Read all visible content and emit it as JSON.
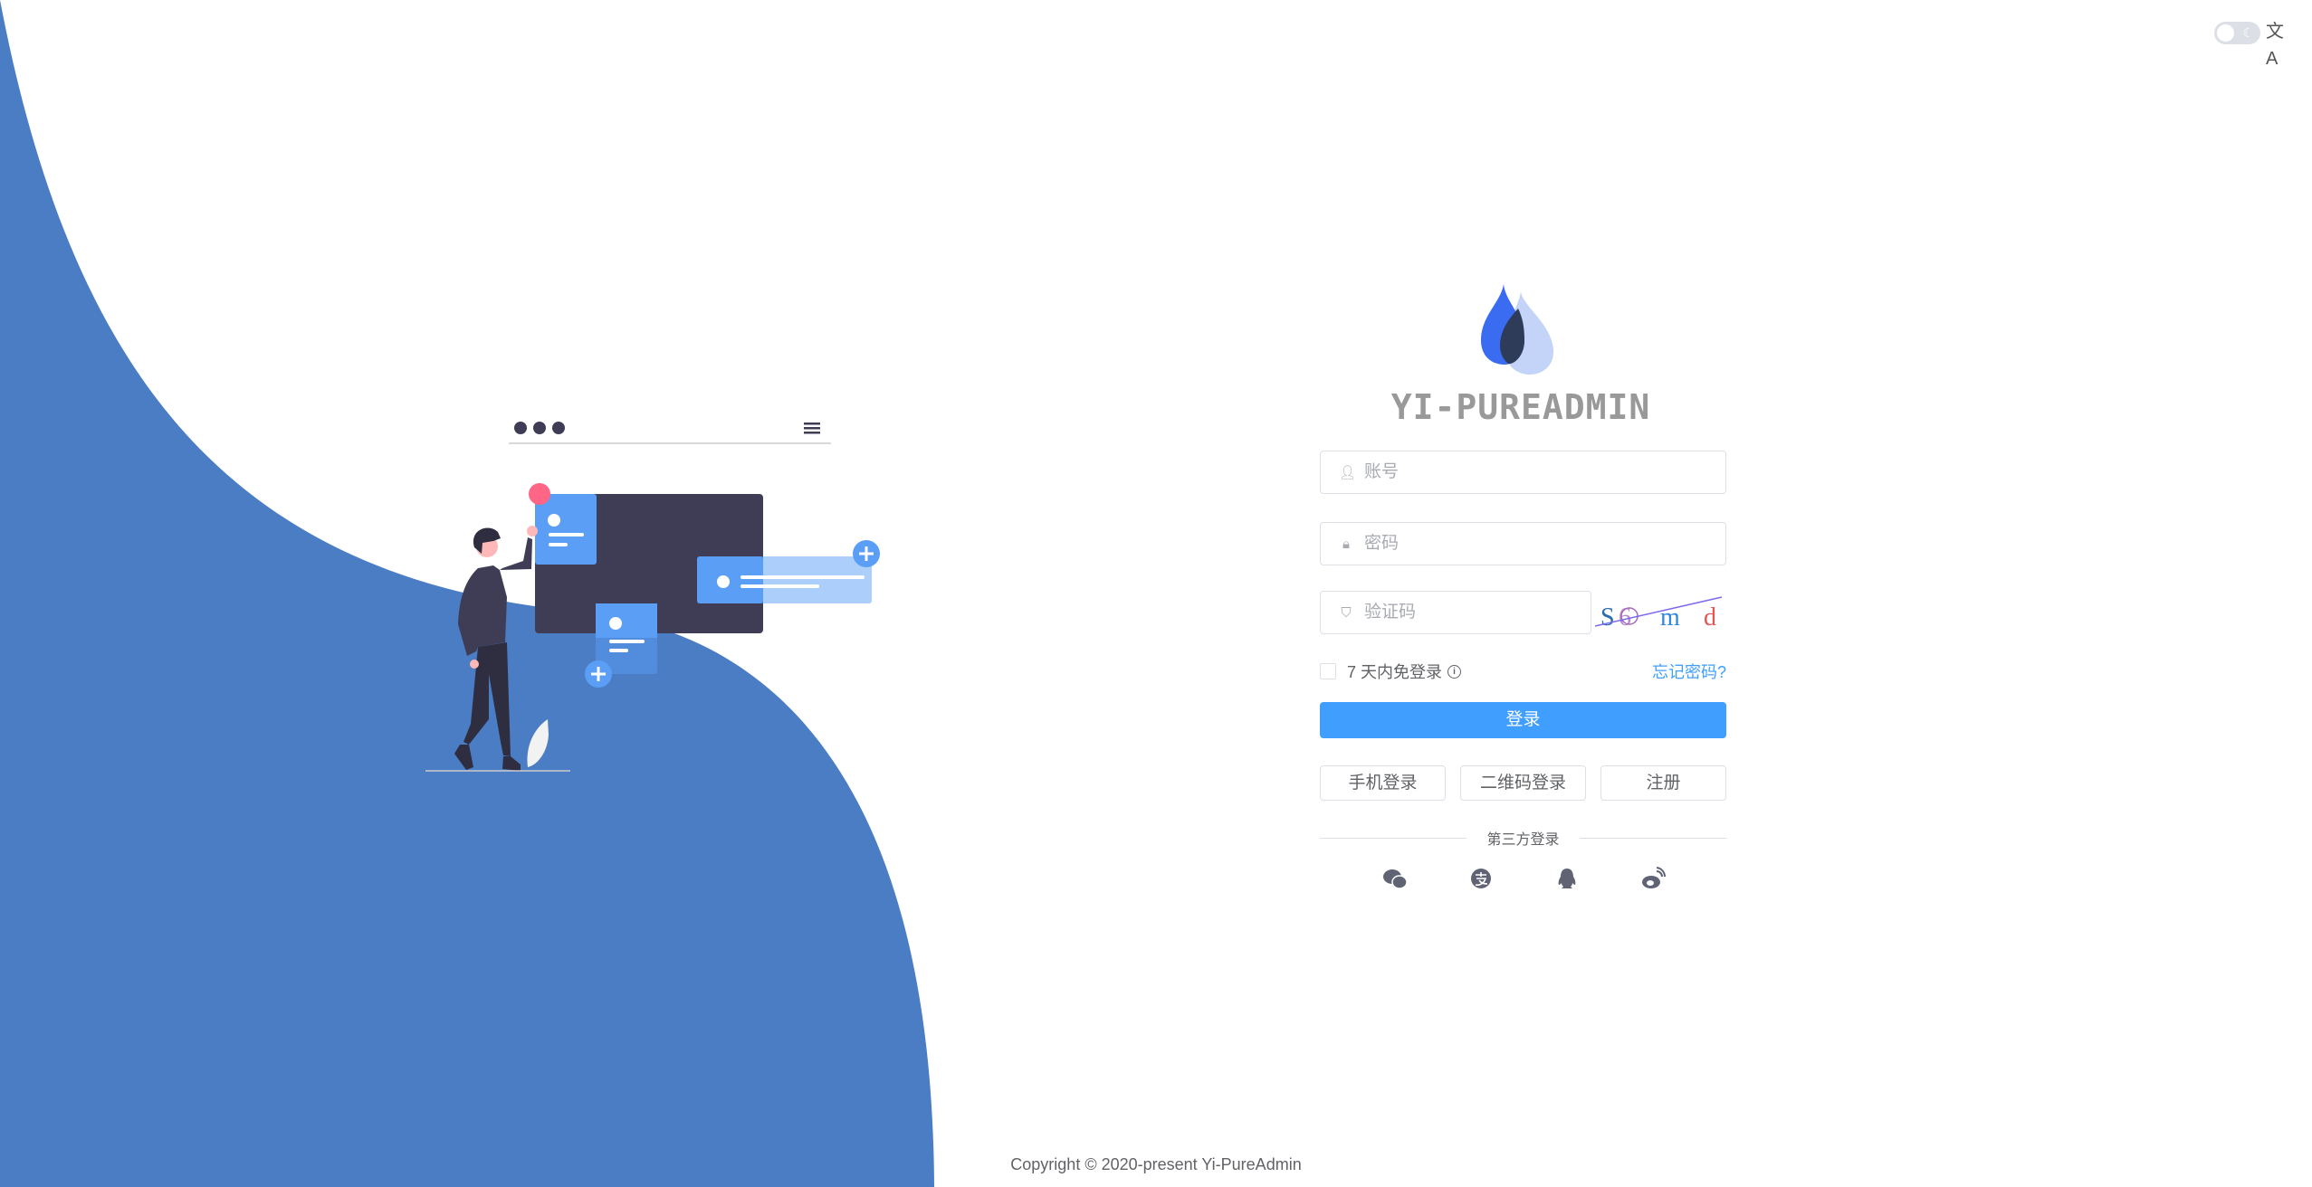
{
  "colors": {
    "wave": "#4a7dc4",
    "primary": "#409eff",
    "dark": "#3f3d56",
    "card": "#5a9ef5",
    "accent": "#ff6584"
  },
  "topbar": {
    "theme_toggle": "dark-mode-toggle",
    "theme_icon": "moon-icon",
    "language_icon": "translate-icon",
    "language_glyph": "文A"
  },
  "brand": {
    "title": "YI-PUREADMIN",
    "logo_icon": "water-drop-logo"
  },
  "form": {
    "username_placeholder": "账号",
    "username_icon": "user-icon",
    "password_placeholder": "密码",
    "password_icon": "lock-icon",
    "captcha_placeholder": "验证码",
    "captcha_icon": "shield-icon",
    "captcha_chars": [
      "S",
      "6",
      "m",
      "d"
    ],
    "remember_label": "7 天内免登录",
    "remember_checked": false,
    "forgot_label": "忘记密码?",
    "login_label": "登录"
  },
  "alt_logins": [
    {
      "label": "手机登录"
    },
    {
      "label": "二维码登录"
    },
    {
      "label": "注册"
    }
  ],
  "third_party": {
    "label": "第三方登录",
    "icons": [
      "wechat-icon",
      "alipay-icon",
      "qq-icon",
      "weibo-icon"
    ]
  },
  "footer": {
    "copyright": "Copyright © 2020-present Yi-PureAdmin"
  }
}
